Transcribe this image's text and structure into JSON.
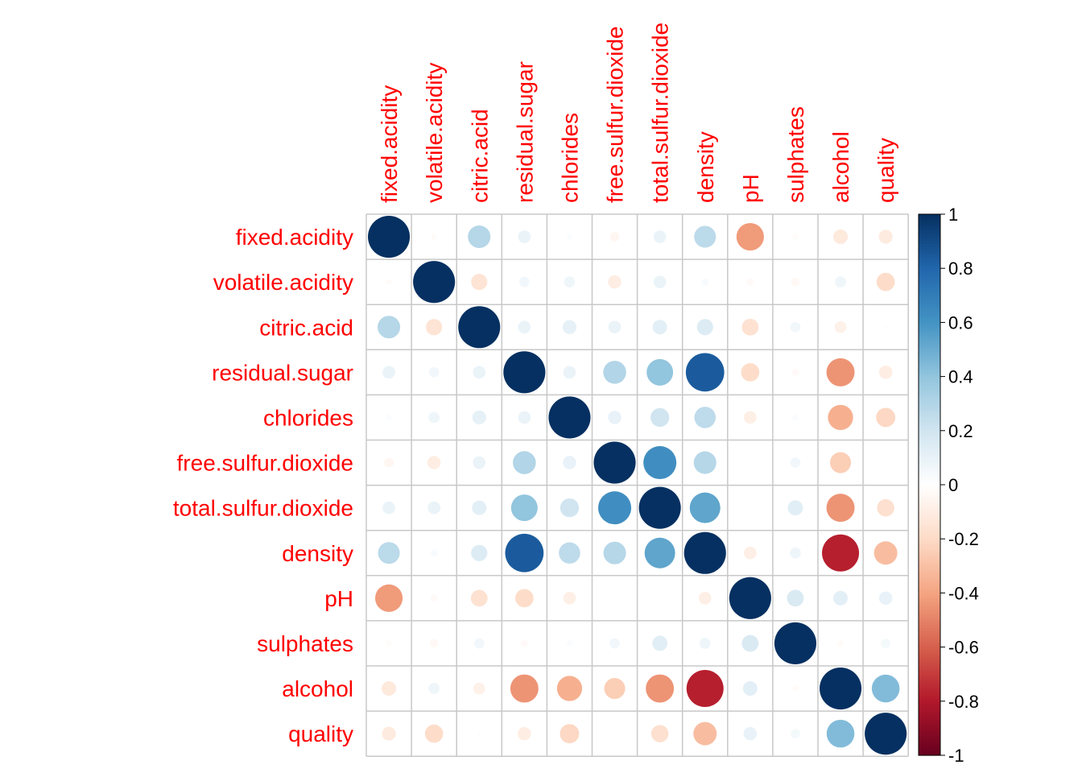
{
  "chart_data": {
    "type": "heatmap",
    "title": "",
    "variables": [
      "fixed.acidity",
      "volatile.acidity",
      "citric.acid",
      "residual.sugar",
      "chlorides",
      "free.sulfur.dioxide",
      "total.sulfur.dioxide",
      "density",
      "pH",
      "sulphates",
      "alcohol",
      "quality"
    ],
    "matrix": [
      [
        1.0,
        -0.02,
        0.29,
        0.09,
        0.02,
        -0.05,
        0.09,
        0.27,
        -0.43,
        -0.02,
        -0.12,
        -0.11
      ],
      [
        -0.02,
        1.0,
        -0.15,
        0.06,
        0.07,
        -0.1,
        0.09,
        0.03,
        -0.03,
        -0.04,
        0.07,
        -0.19
      ],
      [
        0.29,
        -0.15,
        1.0,
        0.09,
        0.11,
        0.09,
        0.12,
        0.15,
        -0.16,
        0.06,
        -0.08,
        -0.01
      ],
      [
        0.09,
        0.06,
        0.09,
        1.0,
        0.09,
        0.3,
        0.4,
        0.84,
        -0.19,
        -0.03,
        -0.45,
        -0.1
      ],
      [
        0.02,
        0.07,
        0.11,
        0.09,
        1.0,
        0.1,
        0.2,
        0.26,
        -0.09,
        0.02,
        -0.36,
        -0.21
      ],
      [
        -0.05,
        -0.1,
        0.09,
        0.3,
        0.1,
        1.0,
        0.62,
        0.29,
        0.0,
        0.06,
        -0.25,
        0.01
      ],
      [
        0.09,
        0.09,
        0.12,
        0.4,
        0.2,
        0.62,
        1.0,
        0.53,
        0.0,
        0.13,
        -0.45,
        -0.17
      ],
      [
        0.27,
        0.03,
        0.15,
        0.84,
        0.26,
        0.29,
        0.53,
        1.0,
        -0.09,
        0.07,
        -0.78,
        -0.31
      ],
      [
        -0.43,
        -0.03,
        -0.16,
        -0.19,
        -0.09,
        0.0,
        0.0,
        -0.09,
        1.0,
        0.16,
        0.12,
        0.1
      ],
      [
        -0.02,
        -0.04,
        0.06,
        -0.03,
        0.02,
        0.06,
        0.13,
        0.07,
        0.16,
        1.0,
        -0.02,
        0.05
      ],
      [
        -0.12,
        0.07,
        -0.08,
        -0.45,
        -0.36,
        -0.25,
        -0.45,
        -0.78,
        0.12,
        -0.02,
        1.0,
        0.44
      ],
      [
        -0.11,
        -0.19,
        -0.01,
        -0.1,
        -0.21,
        0.01,
        -0.17,
        -0.31,
        0.1,
        0.05,
        0.44,
        1.0
      ]
    ],
    "colorbar_ticks": [
      "1",
      "0.8",
      "0.6",
      "0.4",
      "0.2",
      "0",
      "-0.2",
      "-0.4",
      "-0.6",
      "-0.8",
      "-1"
    ],
    "colorbar_range": [
      -1,
      1
    ],
    "colors": {
      "label": "#ff0000",
      "grid": "#c8c8c8",
      "scale": [
        "#67001f",
        "#b2182b",
        "#d6604d",
        "#f4a582",
        "#fddbc7",
        "#ffffff",
        "#d1e5f0",
        "#92c5de",
        "#4393c3",
        "#2166ac",
        "#053061"
      ]
    },
    "grid": true,
    "legend": "right"
  }
}
